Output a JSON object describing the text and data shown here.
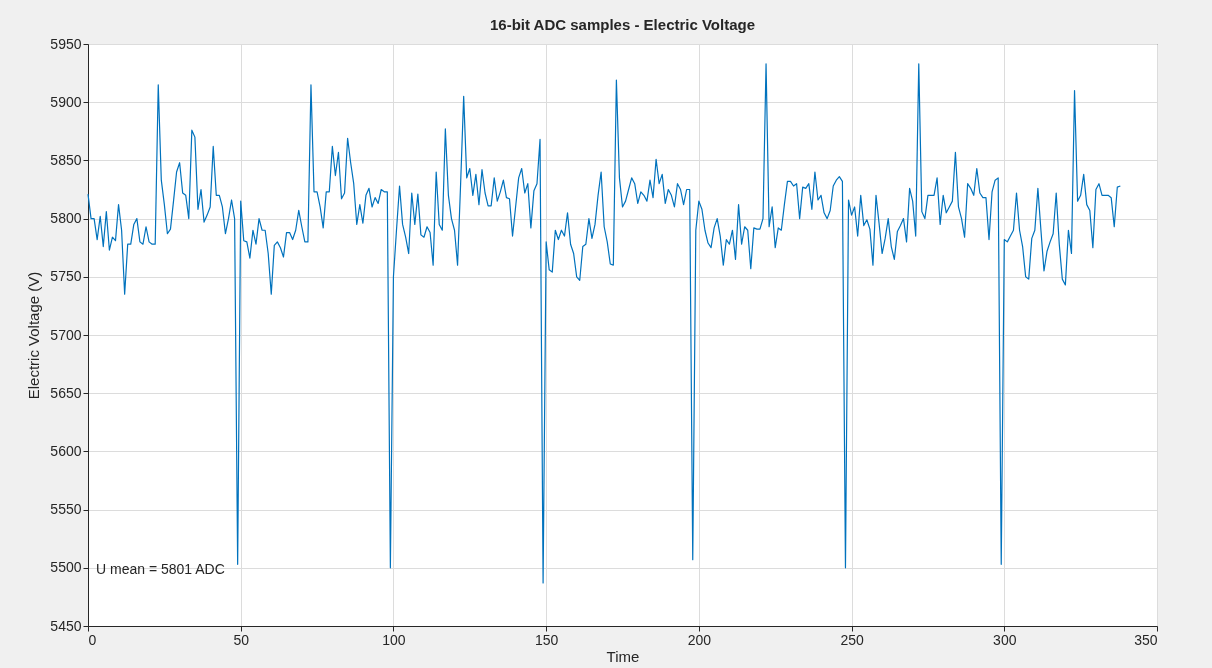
{
  "chart_data": {
    "type": "line",
    "title": "16-bit ADC samples - Electric Voltage",
    "xlabel": "Time",
    "ylabel": "Electric Voltage (V)",
    "annotations": [
      "U mean = 5801 ADC"
    ],
    "xlim": [
      0,
      350
    ],
    "xticks": [
      0,
      50,
      100,
      150,
      200,
      250,
      300,
      350
    ],
    "ylim": [
      5450,
      5950
    ],
    "yticks": [
      5450,
      5500,
      5550,
      5600,
      5650,
      5700,
      5750,
      5800,
      5850,
      5900,
      5950
    ],
    "grid": true,
    "line_style": "solid",
    "x": [
      0,
      1,
      2,
      3,
      4,
      5,
      6,
      7,
      8,
      9,
      10,
      11,
      12,
      13,
      14,
      15,
      16,
      17,
      18,
      19,
      20,
      21,
      22,
      23,
      24,
      25,
      26,
      27,
      28,
      29,
      30,
      31,
      32,
      33,
      34,
      35,
      36,
      37,
      38,
      39,
      40,
      41,
      42,
      43,
      44,
      45,
      46,
      47,
      48,
      49,
      50,
      51,
      52,
      53,
      54,
      55,
      56,
      57,
      58,
      59,
      60,
      61,
      62,
      63,
      64,
      65,
      66,
      67,
      68,
      69,
      70,
      71,
      72,
      73,
      74,
      75,
      76,
      77,
      78,
      79,
      80,
      81,
      82,
      83,
      84,
      85,
      86,
      87,
      88,
      89,
      90,
      91,
      92,
      93,
      94,
      95,
      96,
      97,
      98,
      99,
      100,
      101,
      102,
      103,
      104,
      105,
      106,
      107,
      108,
      109,
      110,
      111,
      112,
      113,
      114,
      115,
      116,
      117,
      118,
      119,
      120,
      121,
      122,
      123,
      124,
      125,
      126,
      127,
      128,
      129,
      130,
      131,
      132,
      133,
      134,
      135,
      136,
      137,
      138,
      139,
      140,
      141,
      142,
      143,
      144,
      145,
      146,
      147,
      148,
      149,
      150,
      151,
      152,
      153,
      154,
      155,
      156,
      157,
      158,
      159,
      160,
      161,
      162,
      163,
      164,
      165,
      166,
      167,
      168,
      169,
      170,
      171,
      172,
      173,
      174,
      175,
      176,
      177,
      178,
      179,
      180,
      181,
      182,
      183,
      184,
      185,
      186,
      187,
      188,
      189,
      190,
      191,
      192,
      193,
      194,
      195,
      196,
      197,
      198,
      199,
      200,
      201,
      202,
      203,
      204,
      205,
      206,
      207,
      208,
      209,
      210,
      211,
      212,
      213,
      214,
      215,
      216,
      217,
      218,
      219,
      220,
      221,
      222,
      223,
      224,
      225,
      226,
      227,
      228,
      229,
      230,
      231,
      232,
      233,
      234,
      235,
      236,
      237,
      238,
      239,
      240,
      241,
      242,
      243,
      244,
      245,
      246,
      247,
      248,
      249,
      250,
      251,
      252,
      253,
      254,
      255,
      256,
      257,
      258,
      259,
      260,
      261,
      262,
      263,
      264,
      265,
      266,
      267,
      268,
      269,
      270,
      271,
      272,
      273,
      274,
      275,
      276,
      277,
      278,
      279,
      280,
      281,
      282,
      283,
      284,
      285,
      286,
      287,
      288,
      289,
      290,
      291,
      292,
      293,
      294,
      295,
      296,
      297,
      298,
      299,
      300,
      301,
      302,
      303,
      304,
      305,
      306,
      307,
      308,
      309,
      310,
      311,
      312,
      313,
      314,
      315,
      316,
      317,
      318,
      319,
      320,
      321,
      322,
      323,
      324,
      325,
      326,
      327,
      328,
      329,
      330,
      331,
      332,
      333,
      334,
      335,
      336,
      337,
      338
    ],
    "series": [
      {
        "color": "#0072bd",
        "values": [
          5821,
          5800,
          5800,
          5782,
          5802,
          5776,
          5806,
          5773,
          5784,
          5781,
          5812,
          5790,
          5735,
          5778,
          5778,
          5795,
          5800,
          5780,
          5778,
          5793,
          5780,
          5778,
          5778,
          5915,
          5833,
          5812,
          5787,
          5791,
          5815,
          5840,
          5848,
          5822,
          5820,
          5800,
          5876,
          5870,
          5808,
          5825,
          5797,
          5803,
          5810,
          5862,
          5820,
          5820,
          5810,
          5787,
          5800,
          5816,
          5800,
          5503,
          5815,
          5781,
          5780,
          5766,
          5790,
          5778,
          5800,
          5790,
          5790,
          5770,
          5735,
          5777,
          5780,
          5775,
          5767,
          5788,
          5788,
          5782,
          5790,
          5807,
          5793,
          5780,
          5780,
          5915,
          5823,
          5823,
          5810,
          5792,
          5823,
          5823,
          5862,
          5837,
          5857,
          5817,
          5822,
          5869,
          5848,
          5830,
          5795,
          5812,
          5796,
          5820,
          5826,
          5810,
          5818,
          5813,
          5825,
          5823,
          5823,
          5500,
          5750,
          5790,
          5828,
          5795,
          5784,
          5770,
          5822,
          5795,
          5821,
          5786,
          5784,
          5793,
          5788,
          5760,
          5840,
          5795,
          5790,
          5877,
          5820,
          5800,
          5790,
          5760,
          5830,
          5905,
          5835,
          5843,
          5820,
          5838,
          5812,
          5842,
          5822,
          5811,
          5811,
          5835,
          5815,
          5823,
          5833,
          5818,
          5817,
          5785,
          5810,
          5835,
          5843,
          5822,
          5830,
          5792,
          5824,
          5830,
          5868,
          5487,
          5780,
          5756,
          5754,
          5790,
          5782,
          5790,
          5785,
          5805,
          5778,
          5770,
          5750,
          5747,
          5776,
          5778,
          5800,
          5783,
          5795,
          5820,
          5840,
          5793,
          5780,
          5761,
          5760,
          5919,
          5835,
          5810,
          5815,
          5825,
          5835,
          5830,
          5813,
          5823,
          5820,
          5815,
          5833,
          5818,
          5851,
          5830,
          5838,
          5813,
          5825,
          5820,
          5810,
          5830,
          5825,
          5812,
          5825,
          5825,
          5507,
          5790,
          5815,
          5808,
          5790,
          5779,
          5775,
          5792,
          5800,
          5785,
          5760,
          5782,
          5778,
          5790,
          5765,
          5812,
          5778,
          5793,
          5790,
          5757,
          5792,
          5791,
          5791,
          5800,
          5933,
          5793,
          5810,
          5775,
          5792,
          5790,
          5812,
          5832,
          5832,
          5828,
          5830,
          5800,
          5827,
          5826,
          5830,
          5808,
          5840,
          5816,
          5820,
          5805,
          5800,
          5807,
          5828,
          5833,
          5836,
          5832,
          5500,
          5816,
          5803,
          5810,
          5785,
          5820,
          5794,
          5799,
          5791,
          5760,
          5820,
          5796,
          5770,
          5783,
          5800,
          5776,
          5765,
          5789,
          5794,
          5800,
          5780,
          5826,
          5815,
          5785,
          5933,
          5806,
          5800,
          5820,
          5820,
          5820,
          5835,
          5795,
          5820,
          5805,
          5810,
          5815,
          5857,
          5810,
          5800,
          5784,
          5830,
          5826,
          5820,
          5843,
          5822,
          5818,
          5818,
          5782,
          5823,
          5833,
          5835,
          5503,
          5782,
          5780,
          5785,
          5790,
          5822,
          5790,
          5776,
          5750,
          5748,
          5783,
          5790,
          5826,
          5790,
          5755,
          5772,
          5780,
          5787,
          5822,
          5778,
          5748,
          5743,
          5790,
          5770,
          5910,
          5815,
          5820,
          5838,
          5812,
          5807,
          5775,
          5825,
          5830,
          5820,
          5820,
          5820,
          5818,
          5793,
          5827,
          5828
        ]
      }
    ]
  }
}
